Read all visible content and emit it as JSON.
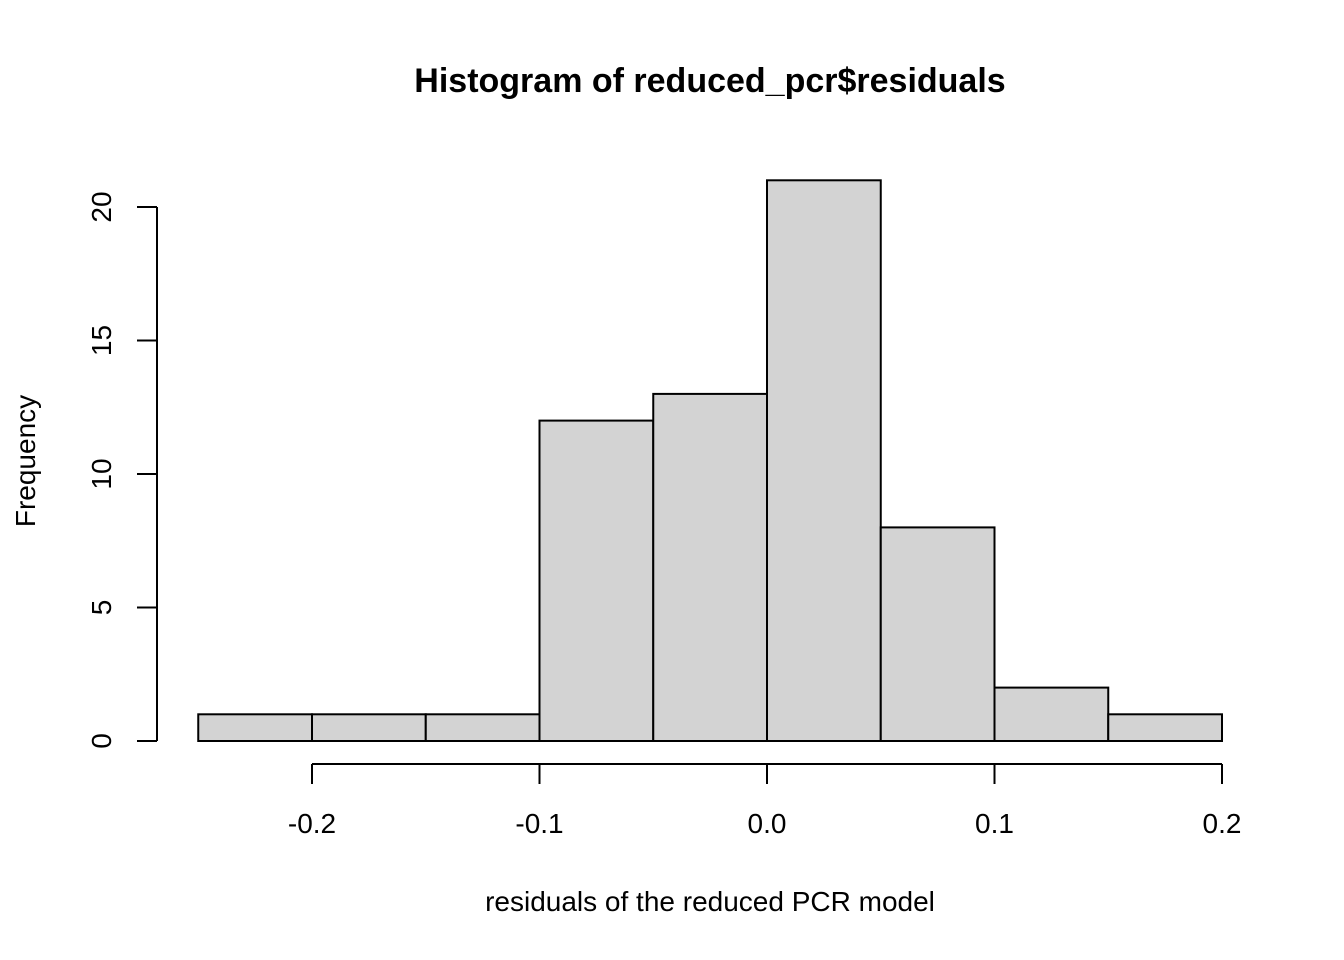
{
  "chart_data": {
    "type": "bar",
    "title": "Histogram of reduced_pcr$residuals",
    "xlabel": "residuals of the reduced PCR model",
    "ylabel": "Frequency",
    "bins": [
      {
        "from": -0.25,
        "to": -0.2,
        "count": 1
      },
      {
        "from": -0.2,
        "to": -0.15,
        "count": 1
      },
      {
        "from": -0.15,
        "to": -0.1,
        "count": 1
      },
      {
        "from": -0.1,
        "to": -0.05,
        "count": 12
      },
      {
        "from": -0.05,
        "to": 0.0,
        "count": 13
      },
      {
        "from": 0.0,
        "to": 0.05,
        "count": 21
      },
      {
        "from": 0.05,
        "to": 0.1,
        "count": 8
      },
      {
        "from": 0.1,
        "to": 0.15,
        "count": 2
      },
      {
        "from": 0.15,
        "to": 0.2,
        "count": 1
      }
    ],
    "xlim": [
      -0.25,
      0.2
    ],
    "ylim": [
      0,
      21
    ],
    "x_ticks": [
      {
        "value": -0.2,
        "label": "-0.2"
      },
      {
        "value": -0.1,
        "label": "-0.1"
      },
      {
        "value": 0.0,
        "label": "0.0"
      },
      {
        "value": 0.1,
        "label": "0.1"
      },
      {
        "value": 0.2,
        "label": "0.2"
      }
    ],
    "y_ticks": [
      {
        "value": 0,
        "label": "0"
      },
      {
        "value": 5,
        "label": "5"
      },
      {
        "value": 10,
        "label": "10"
      },
      {
        "value": 15,
        "label": "15"
      },
      {
        "value": 20,
        "label": "20"
      }
    ],
    "grid": false,
    "legend": "none",
    "colors": {
      "bar_fill": "#d3d3d3",
      "bar_stroke": "#000000",
      "background": "#ffffff"
    }
  }
}
